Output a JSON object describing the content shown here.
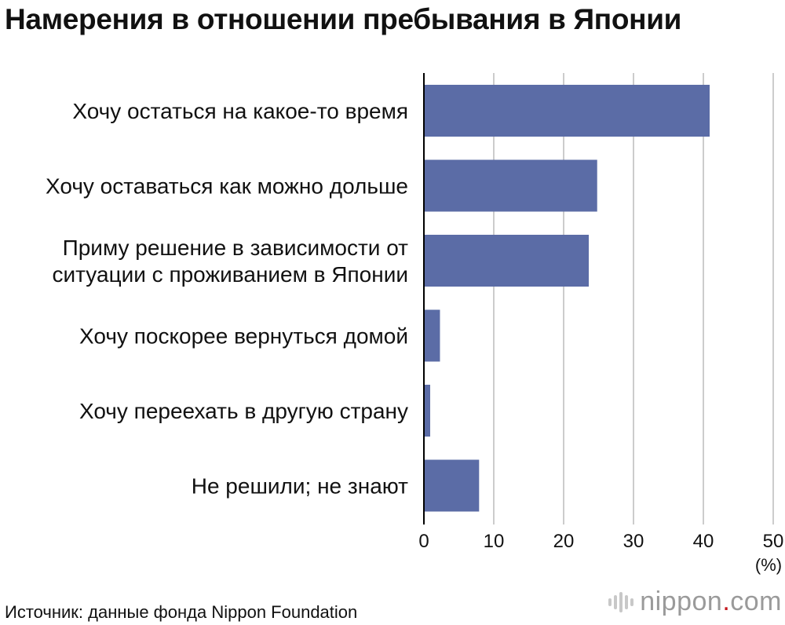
{
  "title": "Намерения в отношении пребывания в Японии",
  "source": "Источник: данные фонда Nippon Foundation",
  "logo": {
    "name": "nippon",
    "dot": ".",
    "tld": "com"
  },
  "colors": {
    "bar": "#5b6ca6",
    "grid": "#cccccc",
    "axis": "#000000",
    "logo_dot": "#c4161c"
  },
  "chart_data": {
    "type": "bar",
    "orientation": "horizontal",
    "title": "Намерения в отношении пребывания в Японии",
    "unit": "(%)",
    "xlim": [
      0,
      50
    ],
    "xticks": [
      "0",
      "10",
      "20",
      "30",
      "40",
      "50"
    ],
    "grid": true,
    "categories": [
      [
        "Хочу остаться на какое-то время"
      ],
      [
        "Хочу оставаться как можно дольше"
      ],
      [
        "Приму решение в зависимости от",
        "ситуации с проживанием в Японии"
      ],
      [
        "Хочу поскорее вернуться домой"
      ],
      [
        "Хочу переехать в другую страну"
      ],
      [
        "Не решили; не знают"
      ]
    ],
    "values": [
      40.9,
      24.8,
      23.6,
      2.3,
      0.9,
      7.9
    ]
  }
}
